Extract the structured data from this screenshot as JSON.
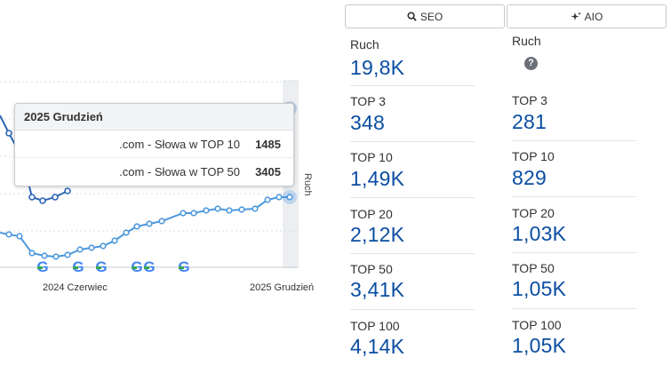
{
  "chart": {
    "tooltip": {
      "title": "2025 Grudzień",
      "rows": [
        {
          "label": ".com - Słowa w TOP 10",
          "value": "1485"
        },
        {
          "label": ".com - Słowa w TOP 50",
          "value": "3405"
        }
      ]
    },
    "x_labels": [
      "2024 Czerwiec",
      "2025 Grudzień"
    ],
    "right_axis_label": "Ruch",
    "series_top10": [
      171,
      175,
      208,
      215,
      213,
      205,
      190,
      175,
      168,
      160,
      158,
      155,
      150,
      150,
      146,
      142,
      140,
      138,
      135,
      133,
      128,
      124,
      124
    ],
    "series_top50": [
      265,
      266,
      270,
      285,
      290,
      289,
      283,
      280,
      277,
      270,
      262,
      255,
      252,
      248,
      240,
      240,
      237,
      235,
      237,
      236,
      235,
      225,
      222
    ]
  },
  "columns": [
    {
      "tab": "SEO",
      "tab_icon": "search-icon",
      "metrics": [
        {
          "label": "Ruch",
          "value": "19,8K"
        },
        {
          "label": "TOP 3",
          "value": "348"
        },
        {
          "label": "TOP 10",
          "value": "1,49K"
        },
        {
          "label": "TOP 20",
          "value": "2,12K"
        },
        {
          "label": "TOP 50",
          "value": "3,41K"
        },
        {
          "label": "TOP 100",
          "value": "4,14K"
        }
      ]
    },
    {
      "tab": "AIO",
      "tab_icon": "sparkle-icon",
      "metrics": [
        {
          "label": "Ruch",
          "value": ""
        },
        {
          "label": "TOP 3",
          "value": "281"
        },
        {
          "label": "TOP 10",
          "value": "829"
        },
        {
          "label": "TOP 20",
          "value": "1,03K"
        },
        {
          "label": "TOP 50",
          "value": "1,05K"
        },
        {
          "label": "TOP 100",
          "value": "1,05K"
        }
      ]
    }
  ],
  "colors": {
    "line_dark": "#2e66b8",
    "line_light": "#4d98dd",
    "value_text": "#0b4ea2"
  }
}
